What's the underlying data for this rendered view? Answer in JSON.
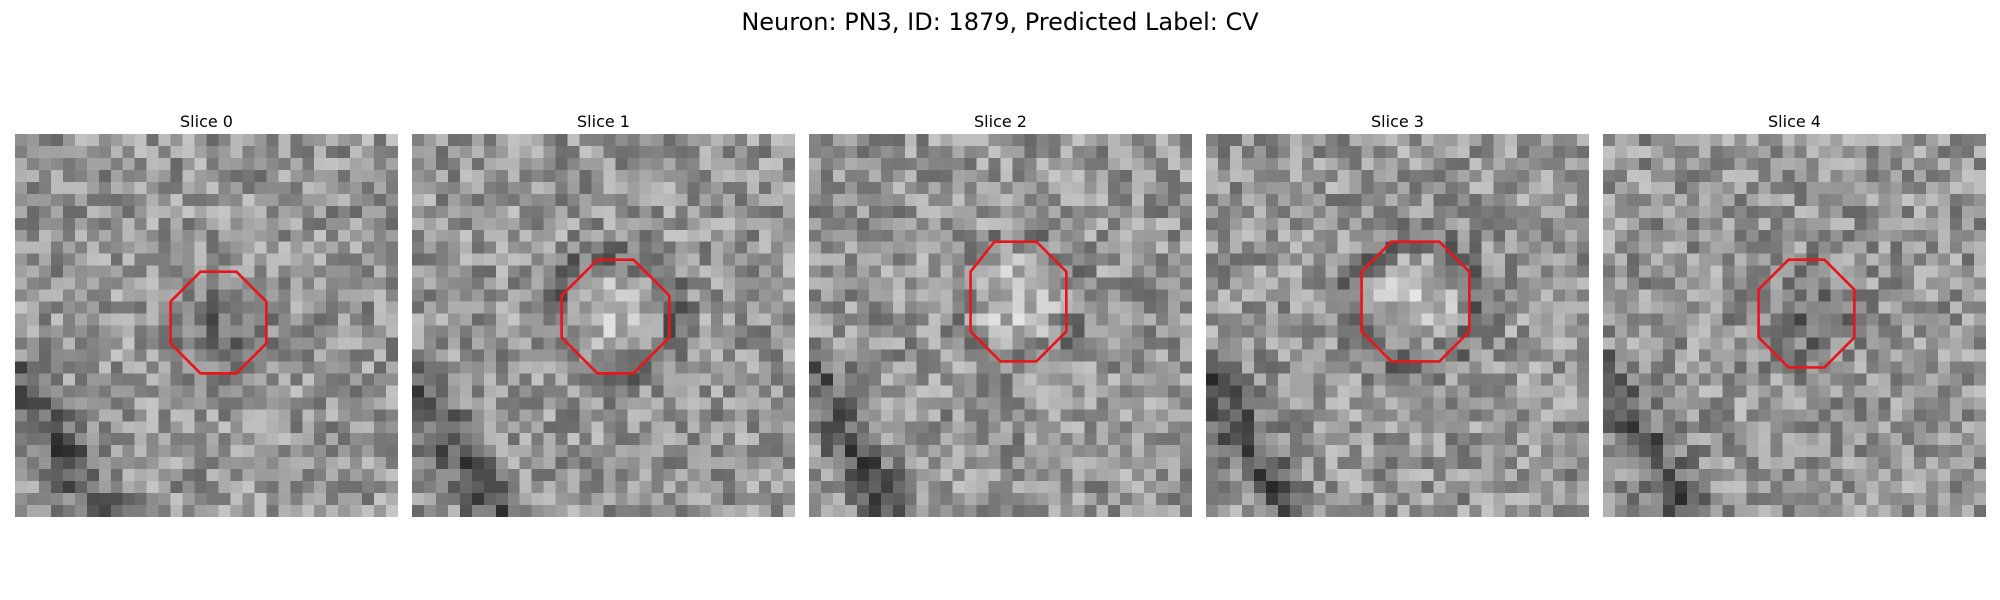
{
  "figure": {
    "title": "Neuron: PN3, ID: 1879, Predicted Label: CV",
    "contour_color": "#e8161b",
    "panels": [
      {
        "title": "Slice 0",
        "ring": "none",
        "center_tone": "dark",
        "contour": [
          [
            15.5,
            11.5
          ],
          [
            18.5,
            11.5
          ],
          [
            21,
            14
          ],
          [
            21,
            17.5
          ],
          [
            18.5,
            20
          ],
          [
            15.5,
            20
          ],
          [
            13,
            17.5
          ],
          [
            13,
            14
          ]
        ]
      },
      {
        "title": "Slice 1",
        "ring": "dark",
        "center_tone": "light",
        "contour": [
          [
            15.5,
            10.5
          ],
          [
            18.5,
            10.5
          ],
          [
            21.5,
            13.5
          ],
          [
            21.5,
            17
          ],
          [
            18.5,
            20
          ],
          [
            15.5,
            20
          ],
          [
            12.5,
            17
          ],
          [
            12.5,
            13.5
          ]
        ]
      },
      {
        "title": "Slice 2",
        "ring": "faint",
        "center_tone": "light",
        "contour": [
          [
            15.5,
            9
          ],
          [
            19,
            9
          ],
          [
            21.5,
            11.5
          ],
          [
            21.5,
            16.5
          ],
          [
            19,
            19
          ],
          [
            16,
            19
          ],
          [
            13.5,
            16.5
          ],
          [
            13.5,
            11.5
          ]
        ]
      },
      {
        "title": "Slice 3",
        "ring": "dark",
        "center_tone": "light",
        "contour": [
          [
            15.5,
            9
          ],
          [
            19.5,
            9
          ],
          [
            22,
            11.5
          ],
          [
            22,
            16.5
          ],
          [
            19.5,
            19
          ],
          [
            15.5,
            19
          ],
          [
            13,
            16.5
          ],
          [
            13,
            11.5
          ]
        ]
      },
      {
        "title": "Slice 4",
        "ring": "none",
        "center_tone": "dark",
        "contour": [
          [
            15.5,
            10.5
          ],
          [
            18.5,
            10.5
          ],
          [
            21,
            13
          ],
          [
            21,
            17
          ],
          [
            18.5,
            19.5
          ],
          [
            15.5,
            19.5
          ],
          [
            13,
            17
          ],
          [
            13,
            13
          ]
        ]
      }
    ]
  }
}
